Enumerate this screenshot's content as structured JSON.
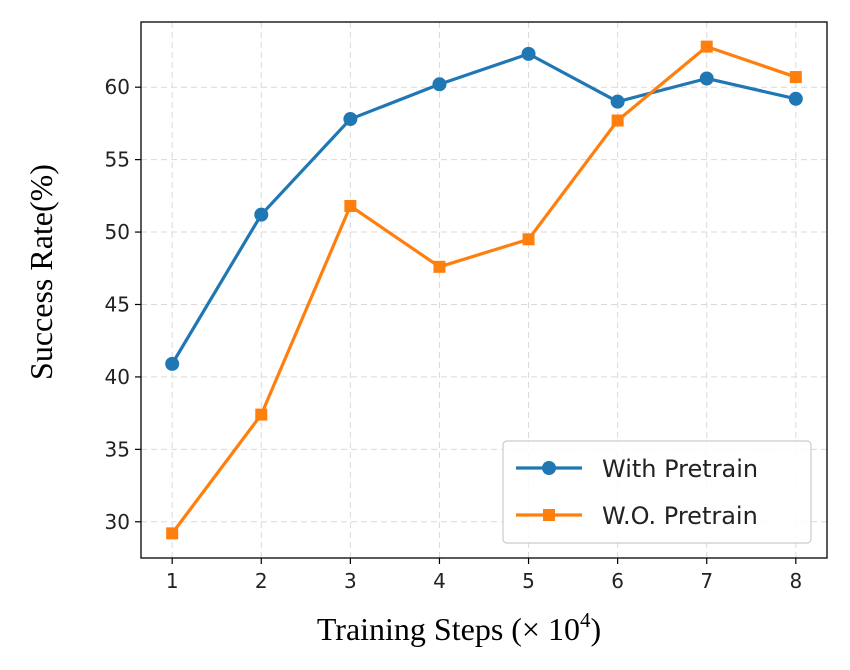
{
  "chart_data": {
    "type": "line",
    "x": [
      1,
      2,
      3,
      4,
      5,
      6,
      7,
      8
    ],
    "xlabel_main": "Training Steps (",
    "xlabel_unit": "× 10",
    "xlabel_exp": "4",
    "xlabel_close": ")",
    "ylabel": "Success Rate(%)",
    "xlim": [
      0.65,
      8.35
    ],
    "ylim": [
      27.5,
      64.5
    ],
    "xticks": [
      1,
      2,
      3,
      4,
      5,
      6,
      7,
      8
    ],
    "yticks": [
      30,
      35,
      40,
      45,
      50,
      55,
      60
    ],
    "grid": true,
    "legend_position": "bottom-right",
    "series": [
      {
        "name": "With Pretrain",
        "values": [
          40.9,
          51.2,
          57.8,
          60.2,
          62.3,
          59.0,
          60.6,
          59.2
        ],
        "color": "#1f77b4",
        "marker": "circle"
      },
      {
        "name": "W.O. Pretrain",
        "values": [
          29.2,
          37.4,
          51.8,
          47.6,
          49.5,
          57.7,
          62.8,
          60.7
        ],
        "color": "#ff7f0e",
        "marker": "square"
      }
    ]
  }
}
